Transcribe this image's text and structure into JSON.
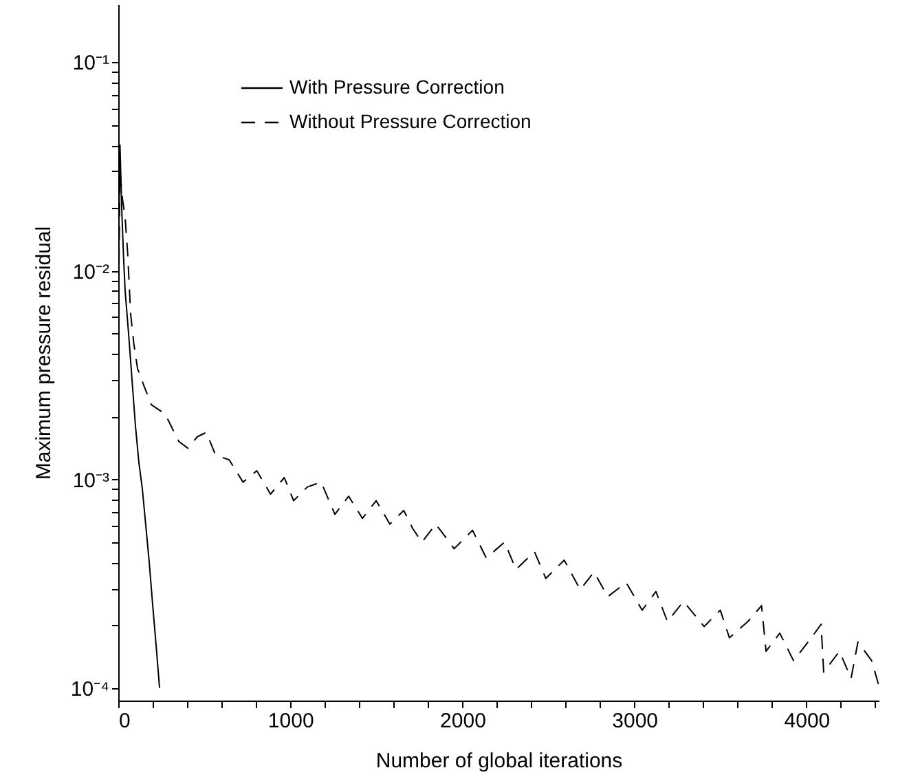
{
  "chart_data": {
    "type": "line",
    "xlabel": "Number of global iterations",
    "ylabel": "Maximum pressure residual",
    "xlim": [
      0,
      4420
    ],
    "ylim": [
      8.7e-05,
      0.19
    ],
    "log": "y",
    "grid": false,
    "legend": "top",
    "marker": "none",
    "xticks": [
      0,
      {
        "value": 200,
        "label": null
      },
      {
        "value": 400,
        "label": null
      },
      {
        "value": 600,
        "label": null
      },
      {
        "value": 800,
        "label": null
      },
      1000,
      {
        "value": 1200,
        "label": null
      },
      {
        "value": 1400,
        "label": null
      },
      {
        "value": 1600,
        "label": null
      },
      {
        "value": 1800,
        "label": null
      },
      2000,
      {
        "value": 2200,
        "label": null
      },
      {
        "value": 2400,
        "label": null
      },
      {
        "value": 2600,
        "label": null
      },
      {
        "value": 2800,
        "label": null
      },
      3000,
      {
        "value": 3200,
        "label": null
      },
      {
        "value": 3400,
        "label": null
      },
      {
        "value": 3600,
        "label": null
      },
      {
        "value": 3800,
        "label": null
      },
      4000,
      {
        "value": 4200,
        "label": null
      },
      {
        "value": 4400,
        "label": null
      }
    ],
    "yticks": [
      {
        "value": 0.0001,
        "label": "10⁻⁴"
      },
      {
        "value": 0.0002,
        "label": null
      },
      {
        "value": 0.0003,
        "label": null
      },
      {
        "value": 0.0004,
        "label": null
      },
      {
        "value": 0.0005,
        "label": null
      },
      {
        "value": 0.0006,
        "label": null
      },
      {
        "value": 0.0007,
        "label": null
      },
      {
        "value": 0.0008,
        "label": null
      },
      {
        "value": 0.0009,
        "label": null
      },
      {
        "value": 0.001,
        "label": "10⁻³"
      },
      {
        "value": 0.002,
        "label": null
      },
      {
        "value": 0.003,
        "label": null
      },
      {
        "value": 0.004,
        "label": null
      },
      {
        "value": 0.005,
        "label": null
      },
      {
        "value": 0.006,
        "label": null
      },
      {
        "value": 0.007,
        "label": null
      },
      {
        "value": 0.008,
        "label": null
      },
      {
        "value": 0.009,
        "label": null
      },
      {
        "value": 0.01,
        "label": "10⁻²"
      },
      {
        "value": 0.02,
        "label": null
      },
      {
        "value": 0.03,
        "label": null
      },
      {
        "value": 0.04,
        "label": null
      },
      {
        "value": 0.05,
        "label": null
      },
      {
        "value": 0.06,
        "label": null
      },
      {
        "value": 0.07,
        "label": null
      },
      {
        "value": 0.08,
        "label": null
      },
      {
        "value": 0.09,
        "label": null
      },
      {
        "value": 0.1,
        "label": "10⁻¹"
      }
    ],
    "series": [
      {
        "name": "With Pressure Correction",
        "color": "#000000",
        "line_style": "solid",
        "x": [
          0,
          10,
          20,
          30,
          40,
          60,
          80,
          100,
          120,
          140,
          160,
          180,
          200,
          220,
          240
        ],
        "values": [
          0.01,
          0.04,
          0.02,
          0.012,
          0.008,
          0.005,
          0.003,
          0.0018,
          0.0012,
          0.0009,
          0.0006,
          0.0004,
          0.00025,
          0.00016,
          0.0001
        ]
      },
      {
        "name": "Without Pressure Correction",
        "color": "#000000",
        "line_style": "dashed",
        "x": [
          0,
          10,
          25,
          40,
          55,
          72,
          90,
          112,
          150,
          192,
          272,
          352,
          405,
          459,
          512,
          565,
          645,
          725,
          805,
          885,
          965,
          1019,
          1099,
          1179,
          1259,
          1339,
          1419,
          1499,
          1579,
          1659,
          1712,
          1765,
          1845,
          1925,
          1952,
          2059,
          2139,
          2245,
          2312,
          2419,
          2485,
          2592,
          2685,
          2765,
          2845,
          2952,
          3045,
          3125,
          3192,
          3285,
          3405,
          3499,
          3552,
          3659,
          3739,
          3765,
          3845,
          3925,
          4019,
          4085,
          4100,
          4192,
          4259,
          4299,
          4379,
          4420
        ],
        "values": [
          0.005,
          0.03,
          0.022,
          0.018,
          0.012,
          0.0062,
          0.0045,
          0.0034,
          0.0028,
          0.00228,
          0.00206,
          0.00152,
          0.00141,
          0.0016,
          0.00168,
          0.00131,
          0.00124,
          0.00097,
          0.0011,
          0.00085,
          0.00102,
          0.00079,
          0.00092,
          0.00097,
          0.00068,
          0.00083,
          0.00065,
          0.00079,
          0.00061,
          0.00071,
          0.00058,
          0.0005,
          0.00061,
          0.0005,
          0.000465,
          0.00057,
          0.00042,
          0.0005,
          0.00037,
          0.00045,
          0.000335,
          0.00041,
          0.000296,
          0.00036,
          0.000274,
          0.00032,
          0.000236,
          0.00029,
          0.000208,
          0.00026,
          0.000197,
          0.000236,
          0.000174,
          0.000208,
          0.000248,
          0.00015,
          0.000183,
          0.000135,
          0.00017,
          0.000202,
          0.000119,
          0.00015,
          0.000111,
          0.000166,
          0.000135,
          0.000103
        ]
      }
    ]
  }
}
